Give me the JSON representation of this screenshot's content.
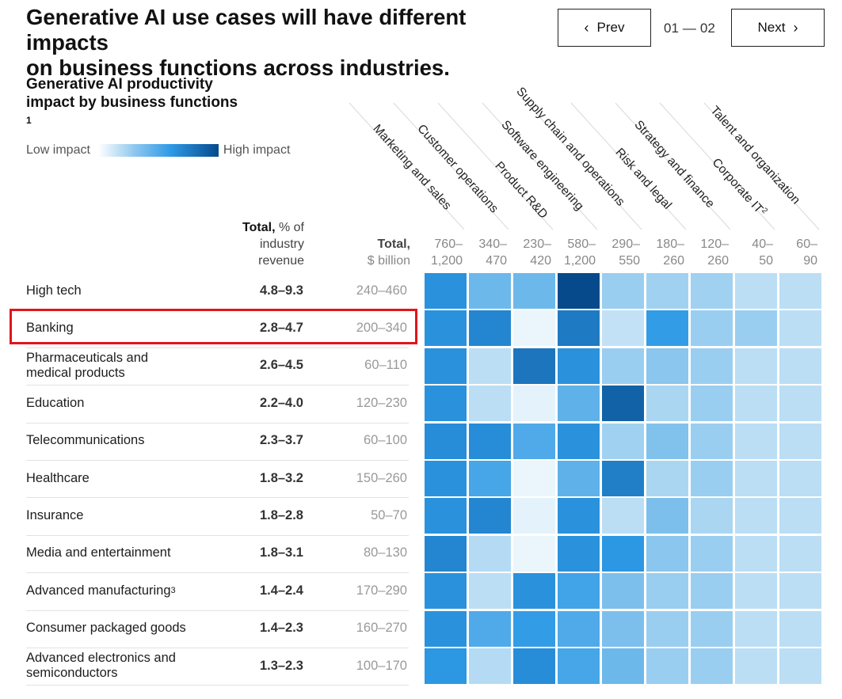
{
  "header": {
    "title_line1": "Generative AI use cases will have different impacts",
    "title_line2": "on business functions across industries."
  },
  "nav": {
    "prev_label": "Prev",
    "next_label": "Next",
    "page_current": "01",
    "page_total": "02",
    "page_separator": "—"
  },
  "chart": {
    "subtitle_line1": "Generative AI productivity",
    "subtitle_line2": "impact by business functions",
    "subtitle_footnote": "1",
    "legend_low": "Low impact",
    "legend_high": "High impact",
    "total_pct_bold": "Total,",
    "total_pct_rest": " % of",
    "total_pct_line2": "industry",
    "total_pct_line3": "revenue",
    "total_usd_bold": "Total,",
    "total_usd_line2": "$ billion",
    "highlight_color": "#e0161b"
  },
  "chart_data": {
    "type": "heatmap",
    "title": "Generative AI productivity impact by business functions",
    "scale": {
      "min_label": "Low impact",
      "max_label": "High impact",
      "colors": [
        "#ffffff",
        "#8fc8ee",
        "#2e9ae6",
        "#064a8c"
      ]
    },
    "functions": [
      {
        "name": "Marketing and sales",
        "range_top": "760–",
        "range_bottom": "1,200"
      },
      {
        "name": "Customer operations",
        "range_top": "340–",
        "range_bottom": "470"
      },
      {
        "name": "Product R&D",
        "range_top": "230–",
        "range_bottom": "420"
      },
      {
        "name": "Software engineering",
        "range_top": "580–",
        "range_bottom": "1,200"
      },
      {
        "name": "Supply chain and operations",
        "range_top": "290–",
        "range_bottom": "550"
      },
      {
        "name": "Risk and legal",
        "range_top": "180–",
        "range_bottom": "260"
      },
      {
        "name": "Strategy and finance",
        "range_top": "120–",
        "range_bottom": "260"
      },
      {
        "name": "Corporate IT",
        "footnote": "2",
        "range_top": "40–",
        "range_bottom": "50"
      },
      {
        "name": "Talent and organization",
        "range_top": "60–",
        "range_bottom": "90"
      }
    ],
    "industries": [
      {
        "name": "High tech",
        "total_pct": "4.8–9.3",
        "total_usd": "240–460",
        "impact": [
          0.7,
          0.45,
          0.45,
          1.0,
          0.3,
          0.28,
          0.28,
          0.2,
          0.2
        ]
      },
      {
        "name": "Banking",
        "total_pct": "2.8–4.7",
        "total_usd": "200–340",
        "impact": [
          0.7,
          0.75,
          0.06,
          0.8,
          0.18,
          0.65,
          0.3,
          0.3,
          0.2
        ],
        "highlighted": true
      },
      {
        "name": "Pharmaceuticals and medical products",
        "total_pct": "2.6–4.5",
        "total_usd": "60–110",
        "impact": [
          0.7,
          0.2,
          0.82,
          0.7,
          0.3,
          0.35,
          0.3,
          0.2,
          0.2
        ]
      },
      {
        "name": "Education",
        "total_pct": "2.2–4.0",
        "total_usd": "120–230",
        "impact": [
          0.7,
          0.2,
          0.08,
          0.5,
          0.9,
          0.25,
          0.3,
          0.2,
          0.2
        ]
      },
      {
        "name": "Telecommunications",
        "total_pct": "2.3–3.7",
        "total_usd": "60–100",
        "impact": [
          0.72,
          0.72,
          0.55,
          0.7,
          0.28,
          0.38,
          0.3,
          0.2,
          0.2
        ]
      },
      {
        "name": "Healthcare",
        "total_pct": "1.8–3.2",
        "total_usd": "150–260",
        "impact": [
          0.7,
          0.58,
          0.06,
          0.5,
          0.78,
          0.25,
          0.3,
          0.2,
          0.2
        ]
      },
      {
        "name": "Insurance",
        "total_pct": "1.8–2.8",
        "total_usd": "50–70",
        "impact": [
          0.7,
          0.75,
          0.08,
          0.7,
          0.2,
          0.4,
          0.25,
          0.2,
          0.2
        ]
      },
      {
        "name": "Media and entertainment",
        "total_pct": "1.8–3.1",
        "total_usd": "80–130",
        "impact": [
          0.75,
          0.22,
          0.06,
          0.7,
          0.68,
          0.35,
          0.3,
          0.2,
          0.2
        ]
      },
      {
        "name": "Advanced manufacturing",
        "footnote": "3",
        "total_pct": "1.4–2.4",
        "total_usd": "170–290",
        "impact": [
          0.7,
          0.2,
          0.7,
          0.6,
          0.4,
          0.3,
          0.3,
          0.2,
          0.2
        ]
      },
      {
        "name": "Consumer packaged goods",
        "total_pct": "1.4–2.3",
        "total_usd": "160–270",
        "impact": [
          0.7,
          0.55,
          0.65,
          0.55,
          0.4,
          0.3,
          0.3,
          0.2,
          0.2
        ]
      },
      {
        "name": "Advanced electronics and semiconductors",
        "total_pct": "1.3–2.3",
        "total_usd": "100–170",
        "impact": [
          0.68,
          0.22,
          0.72,
          0.58,
          0.45,
          0.3,
          0.3,
          0.2,
          0.2
        ]
      }
    ]
  }
}
